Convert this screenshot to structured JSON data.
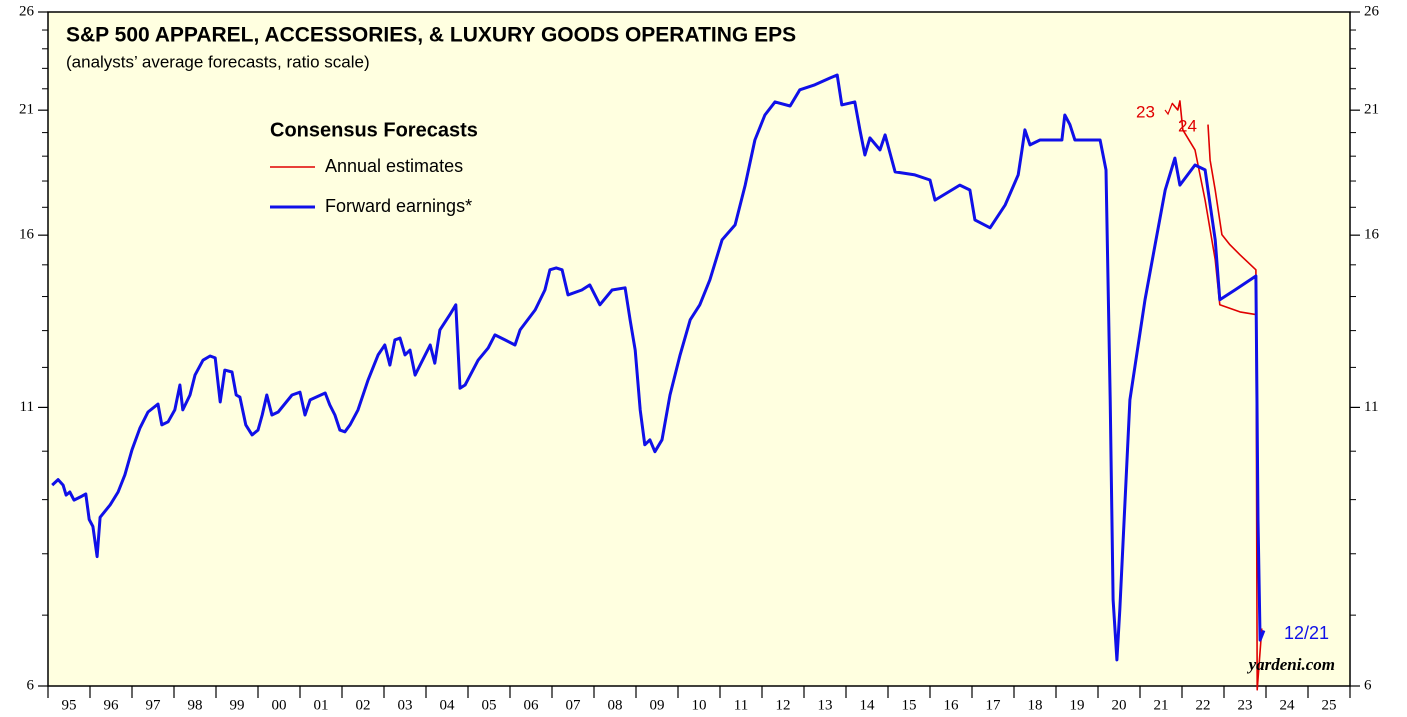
{
  "chart_data": {
    "type": "line",
    "title": "S&P 500 APPAREL, ACCESSORIES, & LUXURY GOODS OPERATING EPS",
    "subtitle": "(analysts’ average forecasts, ratio scale)",
    "legend_title": "Consensus Forecasts",
    "log_scale": true,
    "xlim": [
      1995,
      2026
    ],
    "ylim": [
      6,
      26
    ],
    "yticks": [
      6,
      11,
      16,
      21,
      26
    ],
    "yminor": [
      7,
      8,
      9,
      10,
      12,
      13,
      14,
      15,
      17,
      18,
      19,
      20,
      22,
      23,
      24,
      25
    ],
    "year_boundaries": [
      1995,
      1996,
      1997,
      1998,
      1999,
      2000,
      2001,
      2002,
      2003,
      2004,
      2005,
      2006,
      2007,
      2008,
      2009,
      2010,
      2011,
      2012,
      2013,
      2014,
      2015,
      2016,
      2017,
      2018,
      2019,
      2020,
      2021,
      2022,
      2023,
      2024,
      2025,
      2026
    ],
    "xticks": [
      {
        "value": 1995.5,
        "label": "95"
      },
      {
        "value": 1996.5,
        "label": "96"
      },
      {
        "value": 1997.5,
        "label": "97"
      },
      {
        "value": 1998.5,
        "label": "98"
      },
      {
        "value": 1999.5,
        "label": "99"
      },
      {
        "value": 2000.5,
        "label": "00"
      },
      {
        "value": 2001.5,
        "label": "01"
      },
      {
        "value": 2002.5,
        "label": "02"
      },
      {
        "value": 2003.5,
        "label": "03"
      },
      {
        "value": 2004.5,
        "label": "04"
      },
      {
        "value": 2005.5,
        "label": "05"
      },
      {
        "value": 2006.5,
        "label": "06"
      },
      {
        "value": 2007.5,
        "label": "07"
      },
      {
        "value": 2008.5,
        "label": "08"
      },
      {
        "value": 2009.5,
        "label": "09"
      },
      {
        "value": 2010.5,
        "label": "10"
      },
      {
        "value": 2011.5,
        "label": "11"
      },
      {
        "value": 2012.5,
        "label": "12"
      },
      {
        "value": 2013.5,
        "label": "13"
      },
      {
        "value": 2014.5,
        "label": "14"
      },
      {
        "value": 2015.5,
        "label": "15"
      },
      {
        "value": 2016.5,
        "label": "16"
      },
      {
        "value": 2017.5,
        "label": "17"
      },
      {
        "value": 2018.5,
        "label": "18"
      },
      {
        "value": 2019.5,
        "label": "19"
      },
      {
        "value": 2020.5,
        "label": "20"
      },
      {
        "value": 2021.5,
        "label": "21"
      },
      {
        "value": 2022.5,
        "label": "22"
      },
      {
        "value": 2023.5,
        "label": "23"
      },
      {
        "value": 2024.5,
        "label": "24"
      },
      {
        "value": 2025.5,
        "label": "25"
      }
    ],
    "annotations": [
      "12/21",
      "yardeni.com"
    ],
    "series": [
      {
        "name": "Annual estimates",
        "color": "#e00000",
        "segments": [
          {
            "label": "23",
            "x": [
              2021.76,
              2021.9,
              2021.95,
              2022.02,
              2022.31,
              2022.55,
              2022.79,
              2022.9,
              2023.38,
              2023.76
            ],
            "values": [
              21.33,
              21.01,
              21.43,
              20.12,
              19.26,
              17.27,
              15.17,
              13.75,
              13.54,
              13.46
            ]
          },
          {
            "label": "24",
            "x": [
              2022.62,
              2022.67,
              2022.79,
              2022.95,
              2023.14,
              2023.38,
              2023.76,
              2023.79,
              2023.9
            ],
            "values": [
              20.35,
              18.84,
              17.65,
              16.02,
              15.67,
              15.33,
              14.84,
              5.95,
              6.8
            ]
          }
        ]
      },
      {
        "name": "Forward earnings*",
        "color": "#1010e8",
        "x": [
          1995.1,
          1995.24,
          1995.36,
          1995.43,
          1995.52,
          1995.62,
          1995.81,
          1995.9,
          1995.98,
          1996.07,
          1996.17,
          1996.24,
          1996.48,
          1996.67,
          1996.83,
          1997.0,
          1997.19,
          1997.38,
          1997.62,
          1997.71,
          1997.86,
          1998.02,
          1998.14,
          1998.21,
          1998.38,
          1998.5,
          1998.69,
          1998.86,
          1998.98,
          1999.1,
          1999.21,
          1999.38,
          1999.48,
          1999.57,
          1999.71,
          1999.86,
          2000.0,
          2000.1,
          2000.21,
          2000.33,
          2000.48,
          2000.81,
          2001.0,
          2001.12,
          2001.24,
          2001.6,
          2001.71,
          2001.83,
          2001.95,
          2002.07,
          2002.19,
          2002.38,
          2002.62,
          2002.86,
          2003.02,
          2003.14,
          2003.26,
          2003.38,
          2003.5,
          2003.62,
          2003.74,
          2003.98,
          2004.1,
          2004.21,
          2004.33,
          2004.57,
          2004.71,
          2004.81,
          2004.93,
          2005.24,
          2005.48,
          2005.64,
          2005.88,
          2006.12,
          2006.24,
          2006.6,
          2006.83,
          2006.95,
          2007.1,
          2007.24,
          2007.38,
          2007.71,
          2007.9,
          2008.14,
          2008.43,
          2008.74,
          2008.86,
          2008.98,
          2009.1,
          2009.21,
          2009.33,
          2009.45,
          2009.62,
          2009.81,
          2010.05,
          2010.29,
          2010.52,
          2010.76,
          2011.05,
          2011.36,
          2011.6,
          2011.83,
          2012.07,
          2012.31,
          2012.67,
          2012.9,
          2013.26,
          2013.62,
          2013.79,
          2013.9,
          2014.21,
          2014.33,
          2014.45,
          2014.57,
          2014.81,
          2014.93,
          2015.17,
          2015.64,
          2016.0,
          2016.12,
          2016.71,
          2016.95,
          2017.07,
          2017.43,
          2017.79,
          2018.1,
          2018.19,
          2018.26,
          2018.38,
          2018.62,
          2019.14,
          2019.21,
          2019.33,
          2019.45,
          2020.05,
          2020.19,
          2020.29,
          2020.36,
          2020.45,
          2020.52,
          2020.76,
          2021.12,
          2021.36,
          2021.6,
          2021.83,
          2021.95,
          2022.31,
          2022.55,
          2022.79,
          2022.9,
          2023.26,
          2023.76,
          2023.81,
          2023.86,
          2023.95
        ],
        "values": [
          9.29,
          9.4,
          9.29,
          9.09,
          9.15,
          8.99,
          9.07,
          9.11,
          8.62,
          8.49,
          7.95,
          8.66,
          8.9,
          9.15,
          9.5,
          10.03,
          10.52,
          10.89,
          11.08,
          10.59,
          10.66,
          10.94,
          11.55,
          10.94,
          11.3,
          11.8,
          12.19,
          12.3,
          12.25,
          11.13,
          11.93,
          11.88,
          11.3,
          11.25,
          10.59,
          10.36,
          10.47,
          10.82,
          11.3,
          10.82,
          10.89,
          11.3,
          11.37,
          10.82,
          11.18,
          11.35,
          11.06,
          10.82,
          10.47,
          10.43,
          10.59,
          10.94,
          11.67,
          12.33,
          12.6,
          12.06,
          12.74,
          12.79,
          12.33,
          12.46,
          11.8,
          12.33,
          12.6,
          12.11,
          13.02,
          13.46,
          13.75,
          11.47,
          11.55,
          12.19,
          12.52,
          12.88,
          12.74,
          12.6,
          13.02,
          13.6,
          14.2,
          14.84,
          14.9,
          14.84,
          14.05,
          14.2,
          14.36,
          13.75,
          14.2,
          14.27,
          13.31,
          12.46,
          10.94,
          10.14,
          10.25,
          9.99,
          10.25,
          11.3,
          12.33,
          13.31,
          13.75,
          14.52,
          15.84,
          16.36,
          17.84,
          19.68,
          20.78,
          21.38,
          21.19,
          21.95,
          22.19,
          22.52,
          22.67,
          21.24,
          21.38,
          20.12,
          19.05,
          19.77,
          19.26,
          19.9,
          18.36,
          18.24,
          18.04,
          17.27,
          17.84,
          17.65,
          16.54,
          16.26,
          17.09,
          18.24,
          19.26,
          20.12,
          19.47,
          19.68,
          19.68,
          20.78,
          20.35,
          19.68,
          19.68,
          18.44,
          11.18,
          7.24,
          6.35,
          7.08,
          11.18,
          13.9,
          15.67,
          17.65,
          18.92,
          17.84,
          18.64,
          18.44,
          15.84,
          13.9,
          14.2,
          14.64,
          8.62,
          6.63,
          6.77
        ]
      }
    ]
  }
}
